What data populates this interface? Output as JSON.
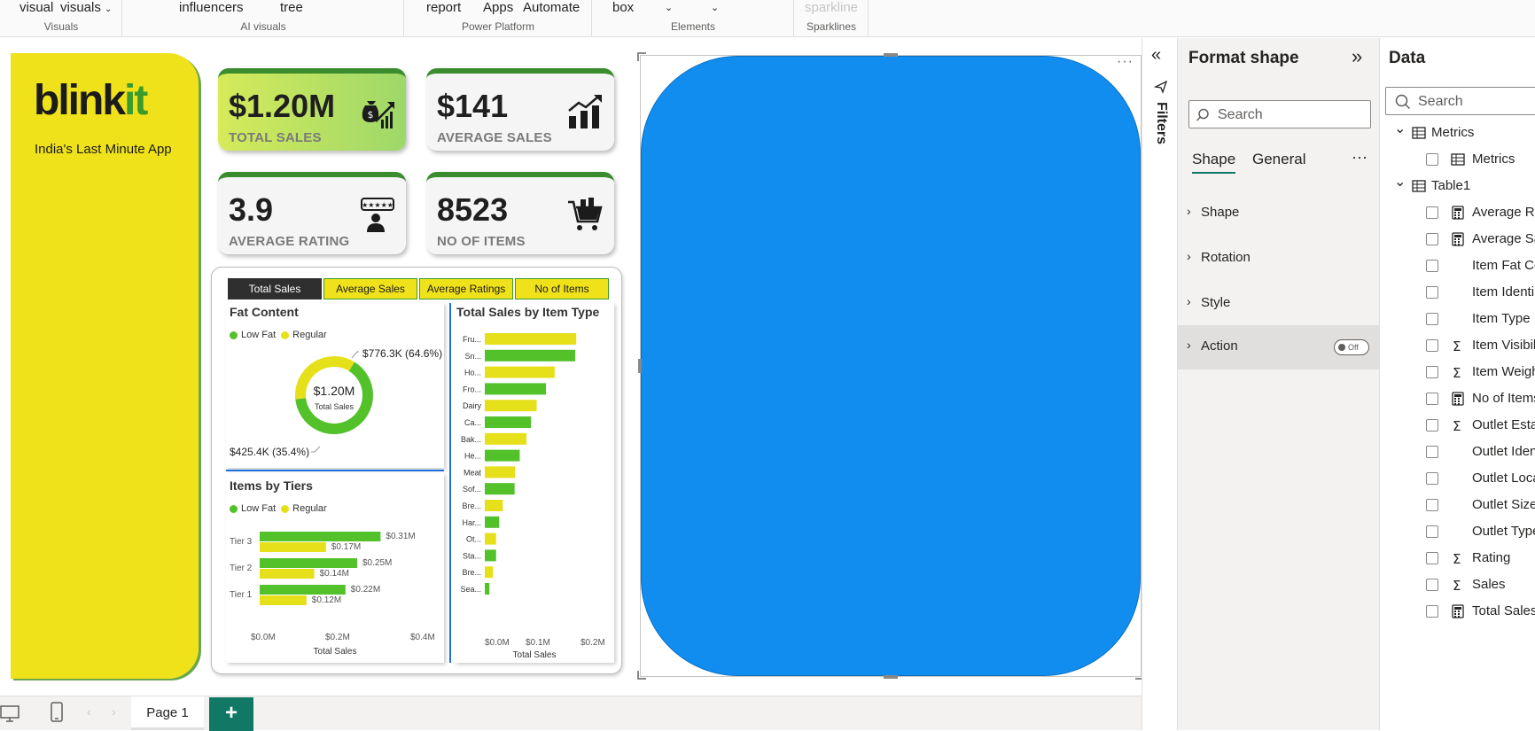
{
  "ribbon": {
    "items": [
      {
        "label": "visual"
      },
      {
        "label": "visuals"
      },
      {
        "label": "influencers"
      },
      {
        "label": "tree"
      },
      {
        "label": "report"
      },
      {
        "label": "Apps"
      },
      {
        "label": "Automate"
      },
      {
        "label": "box"
      },
      {
        "label": "sparkline"
      }
    ],
    "groups": [
      "Visuals",
      "AI visuals",
      "Power Platform",
      "Elements",
      "Sparklines"
    ]
  },
  "brand": {
    "name_black": "blink",
    "name_green": "it",
    "tagline": "India's Last Minute App"
  },
  "kpis": [
    {
      "value": "$1.20M",
      "label": "TOTAL SALES",
      "icon": "money-bag-growth-icon"
    },
    {
      "value": "$141",
      "label": "AVERAGE SALES",
      "icon": "bar-growth-icon"
    },
    {
      "value": "3.9",
      "label": "AVERAGE RATING",
      "icon": "rating-person-icon"
    },
    {
      "value": "8523",
      "label": "NO OF ITEMS",
      "icon": "shopping-cart-icon"
    }
  ],
  "slicer": {
    "buttons": [
      "Total Sales",
      "Average Sales",
      "Average Ratings",
      "No of Items"
    ],
    "selected": "Total Sales"
  },
  "fat_chart": {
    "title": "Fat Content",
    "legend": [
      "Low Fat",
      "Regular"
    ],
    "center_value": "$1.20M",
    "center_label": "Total Sales",
    "label_low": "$776.3K (64.6%)",
    "label_reg": "$425.4K (35.4%)"
  },
  "tiers_chart": {
    "title": "Items by Tiers",
    "legend": [
      "Low Fat",
      "Regular"
    ],
    "xlabel": "Total Sales",
    "xticks": [
      "$0.0M",
      "$0.2M",
      "$0.4M"
    ]
  },
  "item_chart": {
    "title": "Total Sales by Item Type",
    "xlabel": "Total Sales",
    "xticks": [
      "$0.0M",
      "$0.1M",
      "$0.2M"
    ]
  },
  "colors": {
    "green": "#52c12a",
    "yellow": "#e6e01a",
    "brand_yellow": "#f0e21a",
    "shape_blue": "#118df0"
  },
  "chart_data": [
    {
      "type": "pie",
      "title": "Fat Content",
      "categories": [
        "Low Fat",
        "Regular"
      ],
      "values": [
        776.3,
        425.4
      ],
      "percent": [
        64.6,
        35.4
      ],
      "unit": "$K"
    },
    {
      "type": "bar",
      "title": "Items by Tiers",
      "categories": [
        "Tier 3",
        "Tier 2",
        "Tier 1"
      ],
      "series": [
        {
          "name": "Low Fat",
          "values": [
            0.31,
            0.25,
            0.22
          ],
          "labels": [
            "$0.31M",
            "$0.25M",
            "$0.22M"
          ]
        },
        {
          "name": "Regular",
          "values": [
            0.17,
            0.14,
            0.12
          ],
          "labels": [
            "$0.17M",
            "$0.14M",
            "$0.12M"
          ]
        }
      ],
      "xlabel": "Total Sales",
      "xlim": [
        0,
        0.4
      ],
      "unit": "$M"
    },
    {
      "type": "bar",
      "title": "Total Sales by Item Type",
      "categories": [
        "Fru...",
        "Sn...",
        "Ho...",
        "Fro...",
        "Dairy",
        "Ca...",
        "Bak...",
        "He...",
        "Meat",
        "Sof...",
        "Bre...",
        "Har...",
        "Ot...",
        "Sta...",
        "Bre...",
        "Sea..."
      ],
      "values": [
        0.178,
        0.176,
        0.136,
        0.119,
        0.101,
        0.09,
        0.081,
        0.068,
        0.059,
        0.058,
        0.035,
        0.028,
        0.022,
        0.022,
        0.016,
        0.009
      ],
      "bar_colors": [
        "yellow",
        "green",
        "yellow",
        "green",
        "yellow",
        "green",
        "yellow",
        "green",
        "yellow",
        "green",
        "yellow",
        "green",
        "yellow",
        "green",
        "yellow",
        "green"
      ],
      "xlabel": "Total Sales",
      "xlim": [
        0,
        0.2
      ],
      "unit": "$M"
    }
  ],
  "bottom": {
    "page_tab": "Page 1",
    "add_page": "+"
  },
  "filters": {
    "label": "Filters"
  },
  "format_pane": {
    "title": "Format shape",
    "search_placeholder": "Search",
    "tabs": [
      "Shape",
      "General"
    ],
    "more": "···",
    "sections": [
      "Shape",
      "Rotation",
      "Style",
      "Action"
    ],
    "action_toggle": "Off"
  },
  "data_pane": {
    "title": "Data",
    "search_placeholder": "Search",
    "tables": [
      {
        "name": "Metrics",
        "fields": [
          {
            "name": "Metrics",
            "icon": "measure-icon"
          }
        ]
      },
      {
        "name": "Table1",
        "fields": [
          {
            "name": "Average Ra",
            "icon": "calc-icon"
          },
          {
            "name": "Average Sa",
            "icon": "calc-icon"
          },
          {
            "name": "Item Fat Co",
            "icon": ""
          },
          {
            "name": "Item Identi",
            "icon": ""
          },
          {
            "name": "Item Type",
            "icon": ""
          },
          {
            "name": "Item Visibil",
            "icon": "sigma-icon"
          },
          {
            "name": "Item Weigh",
            "icon": "sigma-icon"
          },
          {
            "name": "No of Items",
            "icon": "calc-icon"
          },
          {
            "name": "Outlet Esta",
            "icon": "sigma-icon"
          },
          {
            "name": "Outlet Iden",
            "icon": ""
          },
          {
            "name": "Outlet Loca",
            "icon": ""
          },
          {
            "name": "Outlet Size",
            "icon": ""
          },
          {
            "name": "Outlet Type",
            "icon": ""
          },
          {
            "name": "Rating",
            "icon": "sigma-icon"
          },
          {
            "name": "Sales",
            "icon": "sigma-icon"
          },
          {
            "name": "Total Sales",
            "icon": "calc-icon"
          }
        ]
      }
    ]
  }
}
